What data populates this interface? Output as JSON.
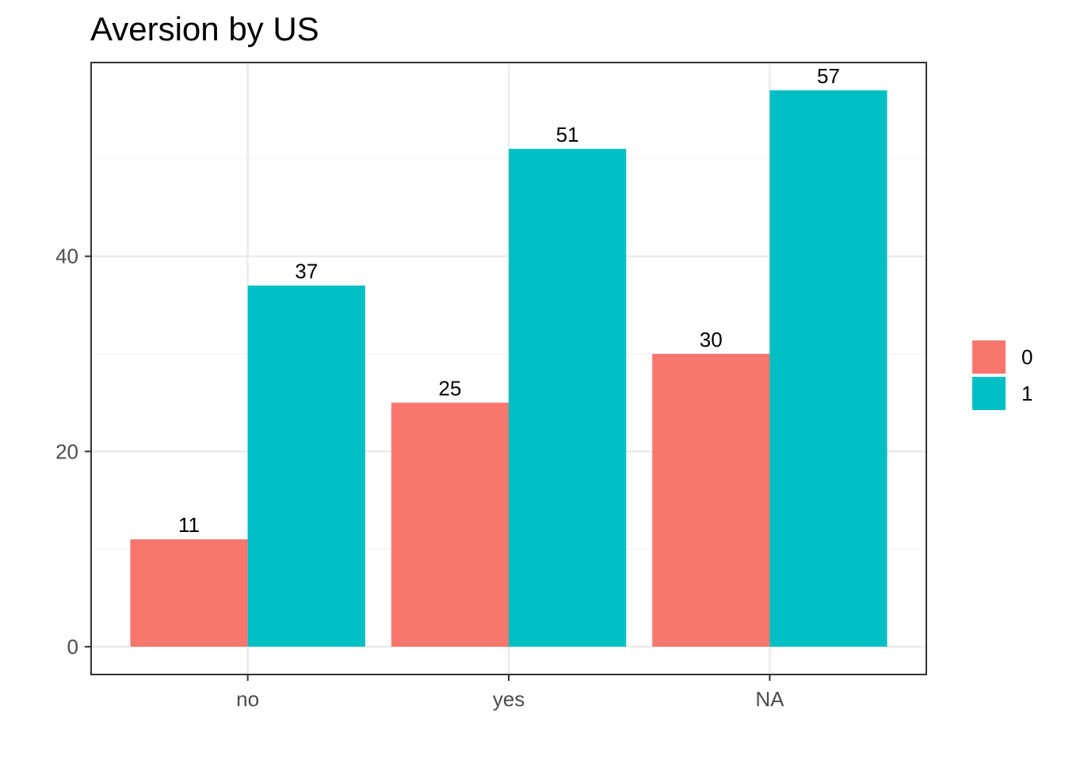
{
  "chart_data": {
    "type": "bar",
    "title": "Aversion by US",
    "xlabel": "",
    "ylabel": "",
    "categories": [
      "no",
      "yes",
      "NA"
    ],
    "series": [
      {
        "name": "0",
        "color": "#F8766D",
        "values": [
          11,
          25,
          30
        ]
      },
      {
        "name": "1",
        "color": "#00BFC4",
        "values": [
          37,
          51,
          57
        ]
      }
    ],
    "ylim": [
      -2.85,
      59.85
    ],
    "y_ticks": [
      0,
      20,
      40
    ],
    "y_minor_ticks": [
      10,
      30,
      50
    ],
    "grid": true,
    "legend_position": "right",
    "data_labels": true
  }
}
